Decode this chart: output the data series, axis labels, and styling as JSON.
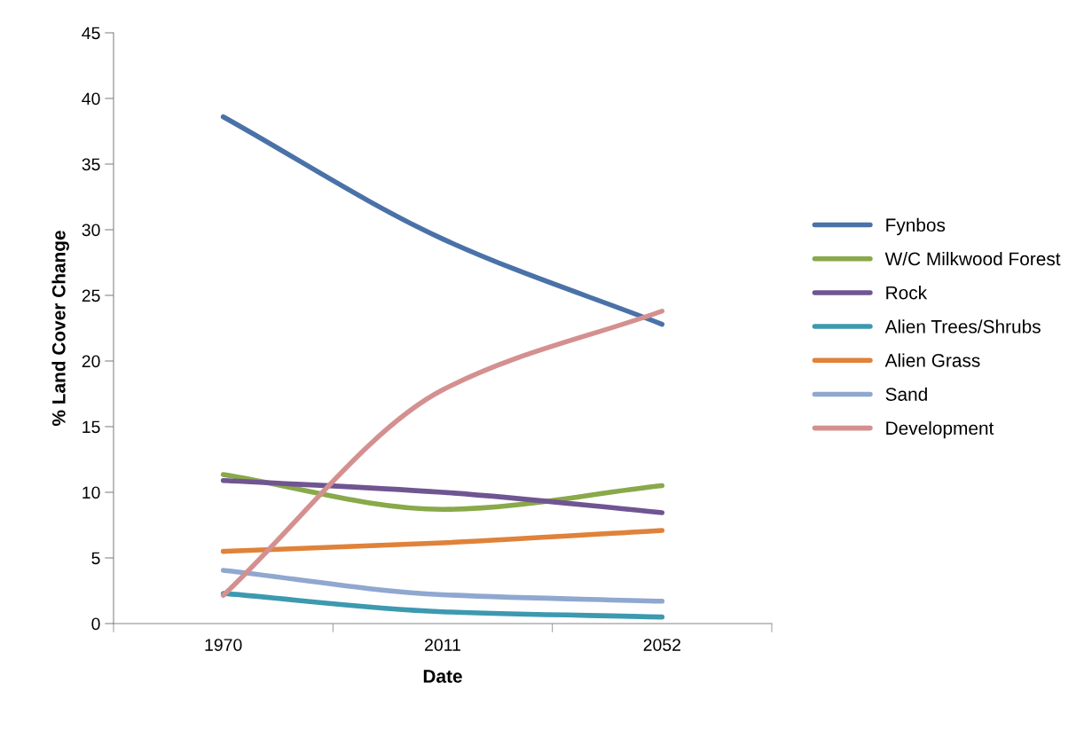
{
  "chart_data": {
    "type": "line",
    "xlabel": "Date",
    "ylabel": "% Land Cover Change",
    "categories": [
      "1970",
      "2011",
      "2052"
    ],
    "series": [
      {
        "name": "Fynbos",
        "color": "#4a72a8",
        "values": [
          38.6,
          29.3,
          22.8
        ]
      },
      {
        "name": "W/C Milkwood Forest",
        "color": "#89a94a",
        "values": [
          11.35,
          8.7,
          10.5
        ]
      },
      {
        "name": "Rock",
        "color": "#6f5591",
        "values": [
          10.9,
          10.0,
          8.45
        ]
      },
      {
        "name": "Alien Trees/Shrubs",
        "color": "#3d99b0",
        "values": [
          2.3,
          0.9,
          0.5
        ]
      },
      {
        "name": "Alien Grass",
        "color": "#e0823a",
        "values": [
          5.5,
          6.15,
          7.1
        ]
      },
      {
        "name": "Sand",
        "color": "#90a8d0",
        "values": [
          4.05,
          2.2,
          1.7
        ]
      },
      {
        "name": "Development",
        "color": "#d49090",
        "values": [
          2.15,
          17.8,
          23.8
        ]
      }
    ],
    "ylim": [
      0,
      45
    ],
    "yticks": [
      0,
      5,
      10,
      15,
      20,
      25,
      30,
      35,
      40,
      45
    ],
    "grid": false,
    "legend": "right",
    "marker": "none",
    "line_style": "solid"
  }
}
